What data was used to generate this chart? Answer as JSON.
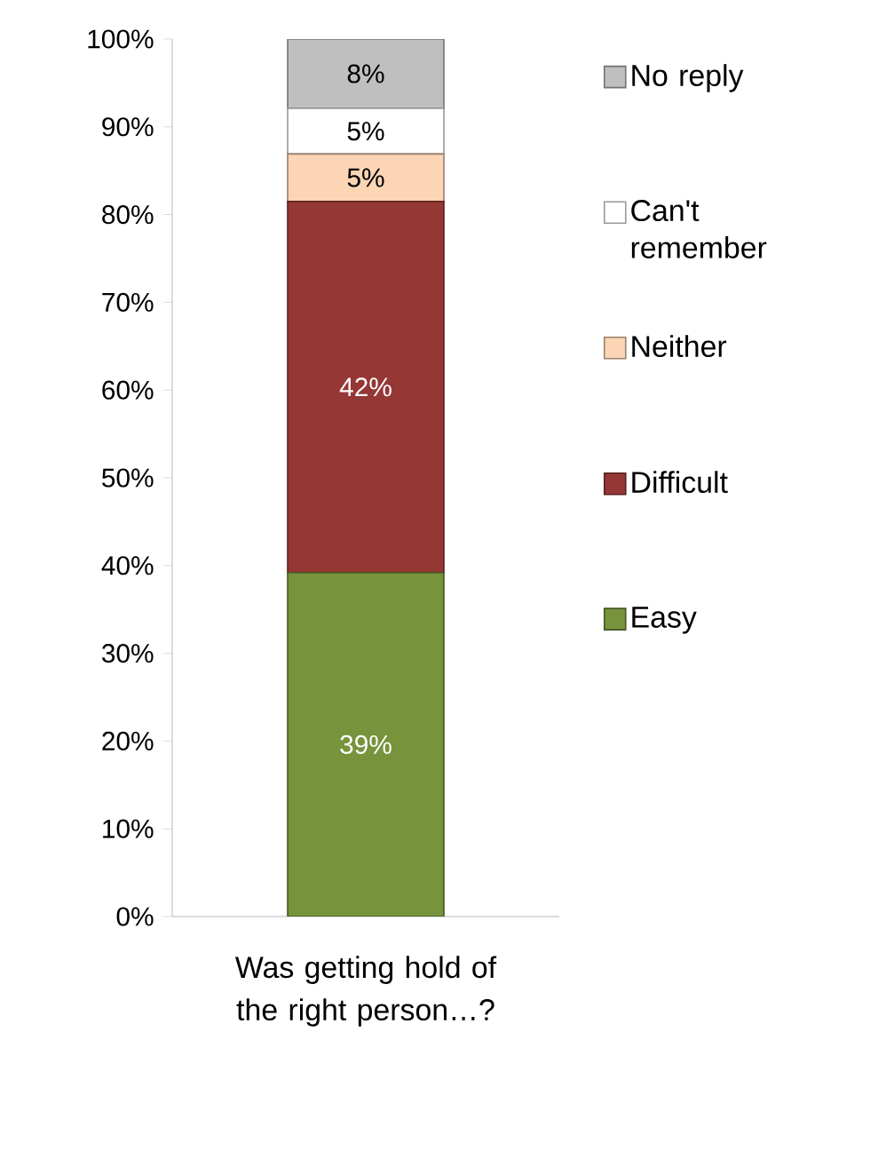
{
  "chart_data": {
    "type": "bar",
    "stacked": true,
    "categories": [
      "Was getting hold of the right person…?"
    ],
    "series": [
      {
        "name": "Easy",
        "color": "#77933c",
        "values": [
          39.2
        ],
        "value_labels": [
          "39%"
        ]
      },
      {
        "name": "Difficult",
        "color": "#953735",
        "values": [
          42.3
        ],
        "value_labels": [
          "42%"
        ]
      },
      {
        "name": "Neither",
        "color": "#fcd5b5",
        "values": [
          5.4
        ],
        "value_labels": [
          "5%"
        ]
      },
      {
        "name": "Can't remember",
        "color": "#ffffff",
        "values": [
          5.2
        ],
        "value_labels": [
          "5%"
        ]
      },
      {
        "name": "No reply",
        "color": "#bfbfbf",
        "values": [
          7.9
        ],
        "value_labels": [
          "8%"
        ]
      }
    ],
    "ylim": [
      0,
      100
    ],
    "yticks": [
      {
        "value": 0,
        "label": "0%"
      },
      {
        "value": 10,
        "label": "10%"
      },
      {
        "value": 20,
        "label": "20%"
      },
      {
        "value": 30,
        "label": "30%"
      },
      {
        "value": 40,
        "label": "40%"
      },
      {
        "value": 50,
        "label": "50%"
      },
      {
        "value": 60,
        "label": "60%"
      },
      {
        "value": 70,
        "label": "70%"
      },
      {
        "value": 80,
        "label": "80%"
      },
      {
        "value": 90,
        "label": "90%"
      },
      {
        "value": 100,
        "label": "100%"
      }
    ],
    "legend": "right",
    "grid": false
  }
}
